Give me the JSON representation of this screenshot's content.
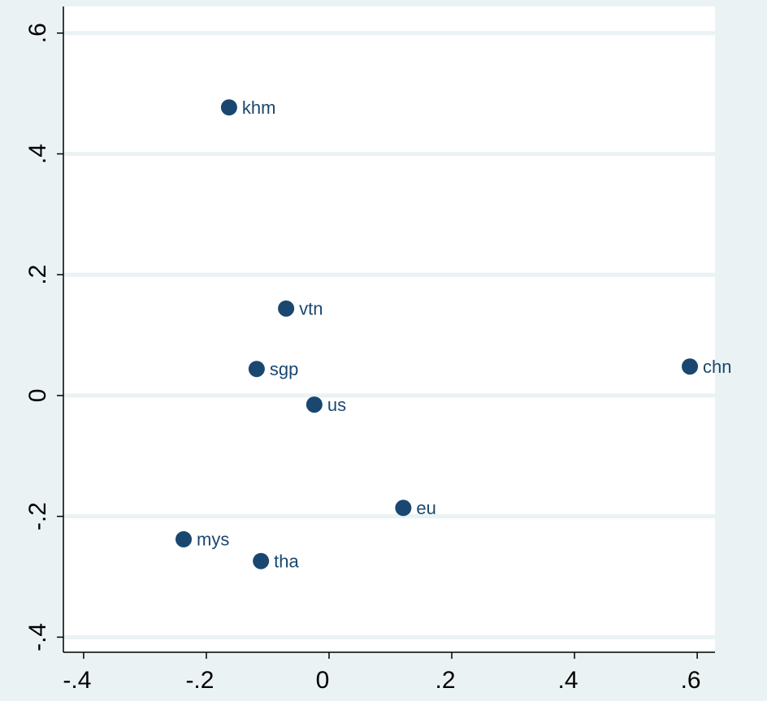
{
  "chart_data": {
    "type": "scatter",
    "points": [
      {
        "label": "khm",
        "x": -0.163,
        "y": 0.477
      },
      {
        "label": "vtn",
        "x": -0.07,
        "y": 0.144
      },
      {
        "label": "sgp",
        "x": -0.118,
        "y": 0.044
      },
      {
        "label": "us",
        "x": -0.024,
        "y": -0.015
      },
      {
        "label": "chn",
        "x": 0.588,
        "y": 0.048
      },
      {
        "label": "eu",
        "x": 0.121,
        "y": -0.186
      },
      {
        "label": "mys",
        "x": -0.237,
        "y": -0.238
      },
      {
        "label": "tha",
        "x": -0.111,
        "y": -0.274
      }
    ],
    "color": "#1a476f",
    "xlim": [
      -0.433,
      0.629
    ],
    "ylim": [
      -0.425,
      0.644
    ],
    "xticks": [
      {
        "value": -0.4,
        "label": "-.4"
      },
      {
        "value": -0.2,
        "label": "-.2"
      },
      0,
      {
        "value": 0.2,
        "label": ".2"
      },
      {
        "value": 0.4,
        "label": ".4"
      },
      {
        "value": 0.6,
        "label": ".6"
      }
    ],
    "yticks": [
      {
        "value": -0.4,
        "label": "-.4"
      },
      {
        "value": -0.2,
        "label": "-.2"
      },
      0,
      {
        "value": 0.2,
        "label": ".2"
      },
      {
        "value": 0.4,
        "label": ".4"
      },
      {
        "value": 0.6,
        "label": ".6"
      }
    ],
    "grid": true
  }
}
